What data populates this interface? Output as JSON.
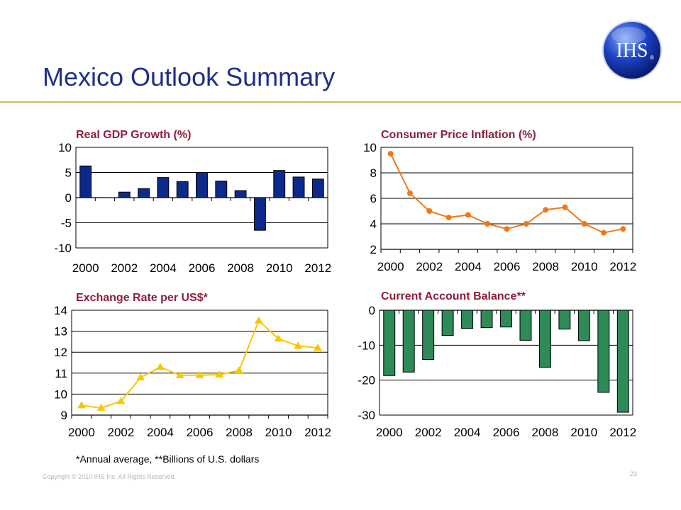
{
  "slide": {
    "title": "Mexico Outlook Summary",
    "logo_text": "IHS",
    "logo_mark": "®",
    "footnote": "*Annual average, **Billions of U.S. dollars",
    "copyright": "Copyright © 2010 IHS Inc. All Rights Reserved.",
    "page_number": "23"
  },
  "colors": {
    "title": "#1f2f8c",
    "chart_title": "#8e1f3a",
    "rule": "#d9b55a",
    "gdp_bar": "#0d2a8a",
    "cpi_line": "#f07818",
    "fx_line": "#f6c800",
    "ca_bar": "#2e8b57"
  },
  "chart_data": [
    {
      "id": "gdp",
      "type": "bar",
      "title": "Real GDP Growth (%)",
      "categories": [
        "2000",
        "2001",
        "2002",
        "2003",
        "2004",
        "2005",
        "2006",
        "2007",
        "2008",
        "2009",
        "2010",
        "2011",
        "2012"
      ],
      "values": [
        6.3,
        0.0,
        1.1,
        1.8,
        4.0,
        3.2,
        5.0,
        3.3,
        1.4,
        -6.5,
        5.4,
        4.1,
        3.7
      ],
      "x_tick_labels": [
        "2000",
        "2002",
        "2004",
        "2006",
        "2008",
        "2010",
        "2012"
      ],
      "y_ticks": [
        10,
        5,
        0,
        -5,
        -10
      ],
      "ylim": [
        -10,
        10
      ],
      "grid": true
    },
    {
      "id": "cpi",
      "type": "line",
      "title": "Consumer Price Inflation (%)",
      "x": [
        "2000",
        "2001",
        "2002",
        "2003",
        "2004",
        "2005",
        "2006",
        "2007",
        "2008",
        "2009",
        "2010",
        "2011",
        "2012"
      ],
      "values": [
        9.5,
        6.4,
        5.0,
        4.5,
        4.7,
        4.0,
        3.6,
        4.0,
        5.1,
        5.3,
        4.0,
        3.3,
        3.6
      ],
      "x_tick_labels": [
        "2000",
        "2002",
        "2004",
        "2006",
        "2008",
        "2010",
        "2012"
      ],
      "y_ticks": [
        10,
        8,
        6,
        4,
        2
      ],
      "ylim": [
        2,
        10
      ],
      "marker": "circle",
      "grid": true
    },
    {
      "id": "fx",
      "type": "line",
      "title": "Exchange Rate per US$*",
      "x": [
        "2000",
        "2001",
        "2002",
        "2003",
        "2004",
        "2005",
        "2006",
        "2007",
        "2008",
        "2009",
        "2010",
        "2011",
        "2012"
      ],
      "values": [
        9.46,
        9.34,
        9.66,
        10.79,
        11.29,
        10.9,
        10.9,
        10.93,
        11.13,
        13.5,
        12.64,
        12.3,
        12.2
      ],
      "x_tick_labels": [
        "2000",
        "2002",
        "2004",
        "2006",
        "2008",
        "2010",
        "2012"
      ],
      "y_ticks": [
        14,
        13,
        12,
        11,
        10,
        9
      ],
      "ylim": [
        9,
        14
      ],
      "marker": "triangle",
      "grid": true
    },
    {
      "id": "ca",
      "type": "bar",
      "title": "Current Account Balance**",
      "categories": [
        "2000",
        "2001",
        "2002",
        "2003",
        "2004",
        "2005",
        "2006",
        "2007",
        "2008",
        "2009",
        "2010",
        "2011",
        "2012"
      ],
      "values": [
        -18.7,
        -17.7,
        -14.1,
        -7.2,
        -5.2,
        -5.0,
        -4.8,
        -8.6,
        -16.3,
        -5.4,
        -8.7,
        -23.5,
        -29.2
      ],
      "x_tick_labels": [
        "2000",
        "2002",
        "2004",
        "2006",
        "2008",
        "2010",
        "2012"
      ],
      "y_ticks": [
        0,
        -10,
        -20,
        -30
      ],
      "ylim": [
        -30,
        0
      ],
      "grid": true
    }
  ]
}
